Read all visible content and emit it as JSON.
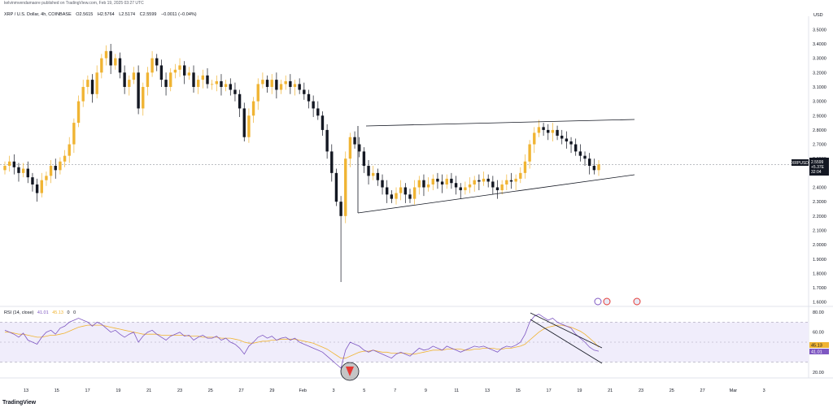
{
  "header": {
    "published": "kelvinmvendamaore published on TradingView.com, Feb 19, 2025 03:27 UTC",
    "symbol": "XRP / U.S. Dollar, 4h, COINBASE",
    "open": "O2.5615",
    "high": "H2.5764",
    "low": "L2.5174",
    "close": "C2.5599",
    "change": "−0.0011 (−0.04%)"
  },
  "price_badge": {
    "ticker": "XRPUSD",
    "price": "2.5599",
    "change": "+5.37E",
    "countdown": "32:04"
  },
  "rsi": {
    "label": "RSI (14, close)",
    "value1": "41.01",
    "value2": "45.13",
    "value3": "0",
    "value4": "0",
    "badge_ma": "45.13",
    "badge_rsi": "41.01"
  },
  "axis_currency": "USD",
  "footer_logo": "TradingView",
  "colors": {
    "up": "#f0b433",
    "down": "#131722",
    "rsi_line": "#7e57c2",
    "rsi_ma": "#f0b433",
    "rsi_band": "#f0edfb"
  },
  "chart_data": {
    "type": "candlestick",
    "x_labels": [
      "13",
      "15",
      "17",
      "19",
      "21",
      "23",
      "25",
      "27",
      "29",
      "Feb",
      "3",
      "5",
      "7",
      "9",
      "11",
      "13",
      "15",
      "17",
      "19",
      "21",
      "23",
      "25",
      "27",
      "Mar",
      "3"
    ],
    "y_ticks": [
      "3.5000",
      "3.4000",
      "3.3000",
      "3.2000",
      "3.1000",
      "3.0000",
      "2.9000",
      "2.8000",
      "2.7000",
      "2.6000",
      "2.5000",
      "2.4000",
      "2.3000",
      "2.2000",
      "2.1000",
      "2.0000",
      "1.9000",
      "1.8000",
      "1.7000",
      "1.6000"
    ],
    "ylim": [
      1.57,
      3.57
    ],
    "current_price": 2.5599,
    "closes": [
      2.55,
      2.58,
      2.54,
      2.5,
      2.53,
      2.47,
      2.42,
      2.36,
      2.45,
      2.48,
      2.55,
      2.52,
      2.58,
      2.62,
      2.7,
      2.85,
      3.0,
      3.1,
      3.15,
      3.05,
      3.2,
      3.3,
      3.35,
      3.25,
      3.3,
      3.2,
      3.1,
      3.15,
      3.2,
      2.95,
      3.1,
      3.2,
      3.3,
      3.25,
      3.15,
      3.1,
      3.2,
      3.22,
      3.25,
      3.18,
      3.2,
      3.1,
      3.15,
      3.18,
      3.12,
      3.12,
      3.14,
      3.1,
      3.12,
      3.08,
      3.05,
      2.95,
      2.75,
      2.9,
      3.0,
      3.12,
      3.15,
      3.1,
      3.15,
      3.08,
      3.12,
      3.14,
      3.1,
      3.12,
      3.08,
      3.05,
      3.0,
      2.95,
      2.9,
      2.8,
      2.65,
      2.5,
      2.3,
      2.2,
      2.6,
      2.75,
      2.7,
      2.65,
      2.55,
      2.48,
      2.5,
      2.45,
      2.4,
      2.35,
      2.32,
      2.36,
      2.4,
      2.35,
      2.32,
      2.4,
      2.45,
      2.4,
      2.42,
      2.46,
      2.44,
      2.42,
      2.46,
      2.43,
      2.4,
      2.38,
      2.4,
      2.42,
      2.45,
      2.44,
      2.46,
      2.44,
      2.4,
      2.38,
      2.42,
      2.45,
      2.44,
      2.46,
      2.5,
      2.58,
      2.7,
      2.78,
      2.82,
      2.8,
      2.78,
      2.8,
      2.76,
      2.74,
      2.72,
      2.7,
      2.65,
      2.62,
      2.6,
      2.55,
      2.52,
      2.56
    ],
    "rsi_values": [
      62,
      60,
      58,
      55,
      59,
      52,
      50,
      48,
      55,
      60,
      62,
      58,
      64,
      66,
      70,
      72,
      74,
      72,
      70,
      66,
      70,
      68,
      64,
      60,
      62,
      58,
      55,
      58,
      60,
      50,
      56,
      60,
      62,
      58,
      55,
      52,
      56,
      58,
      60,
      56,
      57,
      52,
      55,
      57,
      54,
      54,
      56,
      52,
      54,
      50,
      48,
      44,
      38,
      46,
      50,
      55,
      57,
      54,
      56,
      52,
      54,
      55,
      52,
      54,
      50,
      48,
      46,
      44,
      42,
      40,
      36,
      32,
      28,
      24,
      42,
      50,
      48,
      46,
      42,
      40,
      42,
      40,
      38,
      36,
      34,
      38,
      40,
      38,
      36,
      40,
      44,
      42,
      43,
      46,
      44,
      42,
      46,
      44,
      42,
      40,
      42,
      44,
      46,
      45,
      46,
      44,
      42,
      40,
      44,
      46,
      45,
      47,
      50,
      58,
      70,
      76,
      78,
      75,
      72,
      74,
      70,
      68,
      66,
      64,
      58,
      54,
      50,
      45,
      42,
      41
    ],
    "rsi_ma_values": [
      60,
      60,
      59,
      58,
      58,
      57,
      56,
      55,
      55,
      56,
      57,
      57,
      58,
      59,
      61,
      63,
      65,
      66,
      67,
      67,
      67,
      67,
      66,
      65,
      64,
      63,
      62,
      61,
      60,
      59,
      58,
      58,
      58,
      58,
      57,
      57,
      57,
      57,
      57,
      57,
      56,
      56,
      56,
      55,
      55,
      55,
      55,
      54,
      54,
      54,
      53,
      52,
      50,
      49,
      49,
      50,
      51,
      51,
      52,
      52,
      53,
      53,
      53,
      53,
      52,
      51,
      50,
      49,
      47,
      45,
      43,
      40,
      37,
      34,
      34,
      36,
      38,
      40,
      41,
      41,
      42,
      41,
      40,
      40,
      39,
      39,
      39,
      39,
      38,
      38,
      39,
      40,
      41,
      42,
      42,
      42,
      43,
      43,
      43,
      43,
      42,
      42,
      43,
      43,
      44,
      44,
      44,
      43,
      43,
      44,
      44,
      45,
      46,
      48,
      52,
      56,
      60,
      63,
      65,
      66,
      67,
      67,
      66,
      65,
      63,
      61,
      58,
      54,
      50,
      45
    ],
    "rsi_ylim": [
      15,
      85
    ],
    "rsi_y_ticks": [
      "80.00",
      "60.00",
      "20.00"
    ],
    "rsi_band": [
      30,
      70
    ]
  }
}
